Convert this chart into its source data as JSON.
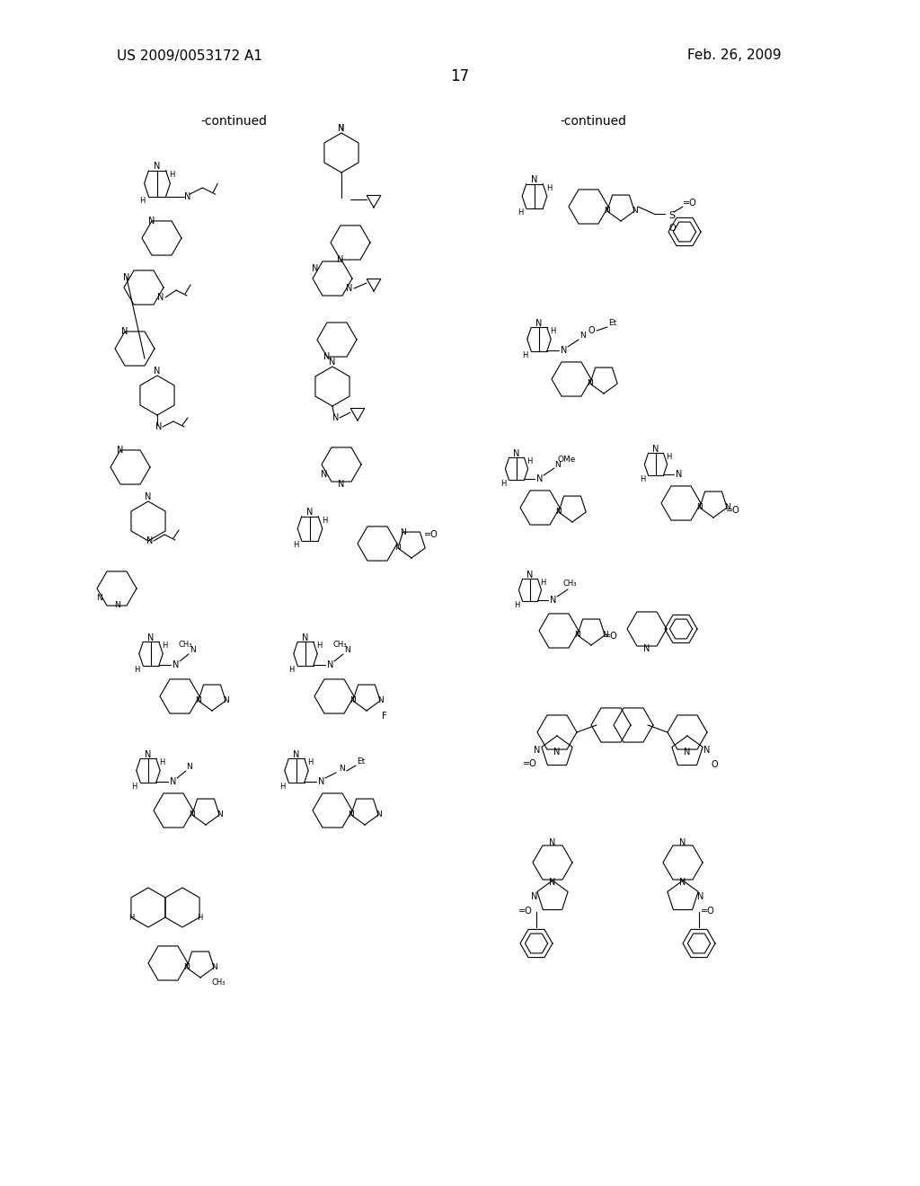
{
  "page_number": "17",
  "left_header": "US 2009/0053172 A1",
  "right_header": "Feb. 26, 2009",
  "continued_label": "-continued",
  "background_color": "#ffffff",
  "text_color": "#000000",
  "font_size_header": 11,
  "font_size_page": 12,
  "font_size_continued": 10,
  "line_width": 0.8
}
